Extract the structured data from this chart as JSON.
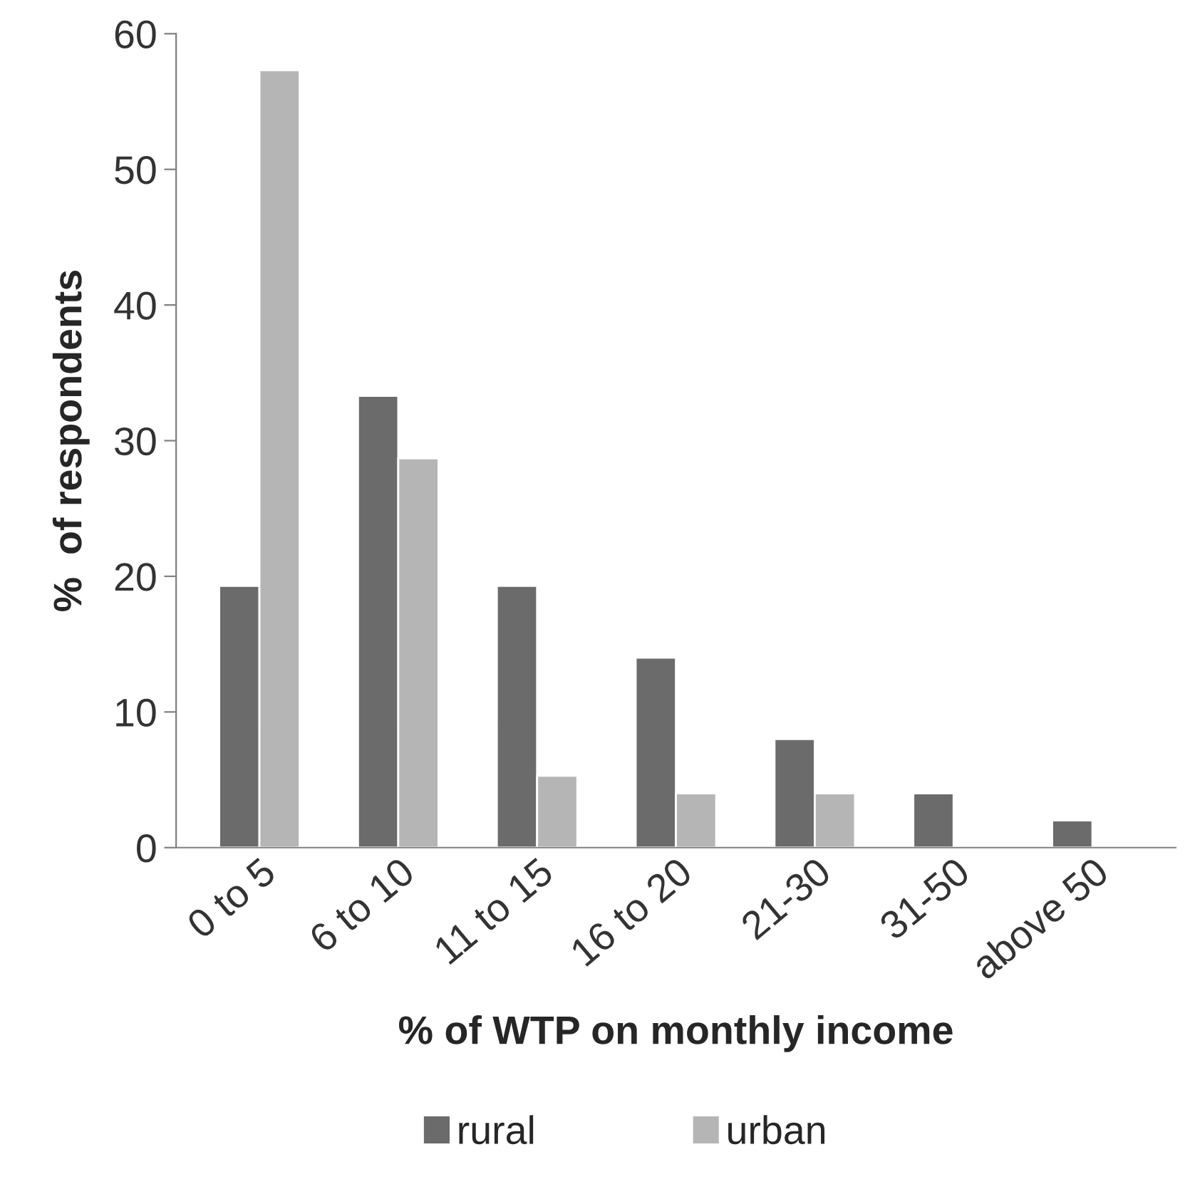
{
  "chart_data": {
    "type": "bar",
    "xlabel": "% of WTP on monthly income",
    "ylabel": "%  of respondents",
    "categories": [
      "0 to 5",
      "6 to 10",
      "11 to 15",
      "16 to 20",
      "21-30",
      "31-50",
      "above 50"
    ],
    "series": [
      {
        "name": "rural",
        "color": "#6b6b6b",
        "values": [
          19.3,
          33.3,
          19.3,
          14,
          8,
          4,
          2
        ]
      },
      {
        "name": "urban",
        "color": "#b5b5b5",
        "values": [
          57.3,
          28.7,
          5.3,
          4,
          4,
          null,
          null
        ]
      }
    ],
    "ylim": [
      0,
      60
    ],
    "yticks": [
      0,
      10,
      20,
      30,
      40,
      50,
      60
    ],
    "grid": false,
    "legend": "bottom"
  }
}
